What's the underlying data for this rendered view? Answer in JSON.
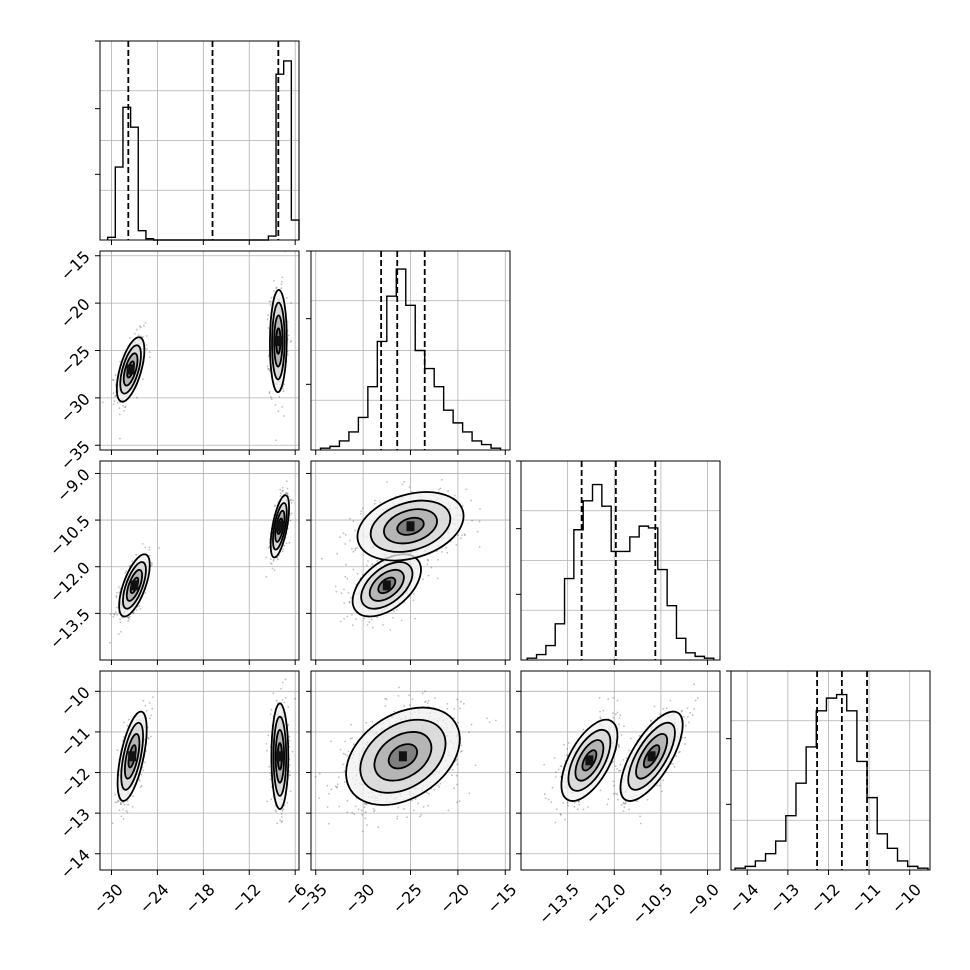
{
  "chart_data": {
    "type": "corner",
    "title": "",
    "colors": {
      "marks": "#000000",
      "grid": "#b0b0b0",
      "background": "#ffffff"
    },
    "grid": true,
    "legend": "none",
    "parameters": [
      {
        "index": 0,
        "range": [
          -31.5,
          -5.5
        ],
        "ticks": [
          -30,
          -24,
          -18,
          -12,
          -6
        ],
        "tick_labels": [
          "−30",
          "−24",
          "−18",
          "−12",
          "−6"
        ],
        "quantiles": [
          -27.8,
          -16.8,
          -8.2
        ]
      },
      {
        "index": 1,
        "range": [
          -35.5,
          -14.5
        ],
        "ticks": [
          -35,
          -30,
          -25,
          -20,
          -15
        ],
        "tick_labels": [
          "−35",
          "−30",
          "−25",
          "−20",
          "−15"
        ],
        "quantiles": [
          -28.1,
          -26.4,
          -23.5
        ]
      },
      {
        "index": 2,
        "range": [
          -15.0,
          -8.6
        ],
        "ticks": [
          -13.5,
          -12.0,
          -10.5,
          -9.0
        ],
        "tick_labels": [
          "−13.5",
          "−12.0",
          "−10.5",
          "−9.0"
        ],
        "quantiles": [
          -13.05,
          -11.95,
          -10.68
        ]
      },
      {
        "index": 3,
        "range": [
          -14.4,
          -9.5
        ],
        "ticks": [
          -14,
          -13,
          -12,
          -11,
          -10
        ],
        "tick_labels": [
          "−14",
          "−13",
          "−12",
          "−11",
          "−10"
        ],
        "quantiles": [
          -12.28,
          -11.67,
          -11.05
        ]
      }
    ],
    "histograms": [
      {
        "param": 0,
        "bin_edges": [
          -30.5,
          -29.5,
          -28.5,
          -27.5,
          -26.5,
          -25.5,
          -24.5,
          -23.5,
          -9.5,
          -8.5,
          -7.5,
          -6.5,
          -5.5
        ],
        "counts": [
          0.02,
          0.55,
          1.0,
          0.85,
          0.07,
          0.01,
          0,
          0,
          0.03,
          1.25,
          1.35,
          0.15
        ],
        "ylim": [
          0,
          1.5
        ]
      },
      {
        "param": 1,
        "bin_edges": [
          -34.5,
          -33.5,
          -32.5,
          -31.5,
          -30.5,
          -29.5,
          -28.5,
          -27.5,
          -26.5,
          -25.5,
          -24.5,
          -23.5,
          -22.5,
          -21.5,
          -20.5,
          -19.5,
          -18.5,
          -17.5,
          -16.5,
          -15.5
        ],
        "counts": [
          0.01,
          0.02,
          0.05,
          0.1,
          0.18,
          0.35,
          0.6,
          0.85,
          1.0,
          0.8,
          0.55,
          0.45,
          0.35,
          0.22,
          0.15,
          0.1,
          0.05,
          0.03,
          0.01
        ],
        "ylim": [
          0,
          1.1
        ]
      },
      {
        "param": 2,
        "bin_edges": [
          -14.8,
          -14.5,
          -14.2,
          -13.9,
          -13.6,
          -13.3,
          -13.0,
          -12.7,
          -12.4,
          -12.1,
          -11.8,
          -11.5,
          -11.2,
          -10.9,
          -10.6,
          -10.3,
          -10.0,
          -9.7,
          -9.4,
          -9.1,
          -8.8
        ],
        "counts": [
          0.01,
          0.03,
          0.08,
          0.2,
          0.45,
          0.72,
          0.88,
          0.97,
          0.85,
          0.6,
          0.6,
          0.68,
          0.74,
          0.73,
          0.5,
          0.3,
          0.12,
          0.04,
          0.02,
          0.01
        ],
        "ylim": [
          0,
          1.1
        ]
      },
      {
        "param": 3,
        "bin_edges": [
          -14.3,
          -14.05,
          -13.8,
          -13.55,
          -13.3,
          -13.05,
          -12.8,
          -12.55,
          -12.3,
          -12.05,
          -11.8,
          -11.55,
          -11.3,
          -11.05,
          -10.8,
          -10.55,
          -10.3,
          -10.05,
          -9.8,
          -9.55
        ],
        "counts": [
          0.01,
          0.02,
          0.05,
          0.09,
          0.16,
          0.3,
          0.48,
          0.68,
          0.88,
          0.95,
          0.97,
          0.88,
          0.6,
          0.4,
          0.2,
          0.12,
          0.05,
          0.02,
          0.01
        ],
        "ylim": [
          0,
          1.1
        ]
      }
    ],
    "pairs": [
      {
        "x": 0,
        "y": 1,
        "modes": [
          {
            "center": [
              -27.5,
              -27.0
            ],
            "sd": [
              0.9,
              1.7
            ],
            "rho": 0.6
          },
          {
            "center": [
              -8.2,
              -24.0
            ],
            "sd": [
              0.55,
              2.7
            ],
            "rho": 0.05
          }
        ]
      },
      {
        "x": 0,
        "y": 2,
        "modes": [
          {
            "center": [
              -27.0,
              -12.6
            ],
            "sd": [
              1.0,
              0.5
            ],
            "rho": 0.65
          },
          {
            "center": [
              -8.0,
              -10.7
            ],
            "sd": [
              0.6,
              0.5
            ],
            "rho": 0.6
          }
        ]
      },
      {
        "x": 0,
        "y": 3,
        "modes": [
          {
            "center": [
              -27.3,
              -11.6
            ],
            "sd": [
              0.95,
              0.55
            ],
            "rho": 0.6
          },
          {
            "center": [
              -8.0,
              -11.6
            ],
            "sd": [
              0.55,
              0.65
            ],
            "rho": 0.0
          }
        ]
      },
      {
        "x": 1,
        "y": 2,
        "modes": [
          {
            "center": [
              -27.5,
              -12.6
            ],
            "sd": [
              1.8,
              0.5
            ],
            "rho": 0.5
          },
          {
            "center": [
              -25.0,
              -10.7
            ],
            "sd": [
              2.8,
              0.55
            ],
            "rho": 0.3
          }
        ]
      },
      {
        "x": 1,
        "y": 3,
        "modes": [
          {
            "center": [
              -25.8,
              -11.6
            ],
            "sd": [
              3.0,
              0.6
            ],
            "rho": 0.35
          }
        ]
      },
      {
        "x": 2,
        "y": 3,
        "modes": [
          {
            "center": [
              -12.8,
              -11.7
            ],
            "sd": [
              0.45,
              0.5
            ],
            "rho": 0.6
          },
          {
            "center": [
              -10.8,
              -11.6
            ],
            "sd": [
              0.5,
              0.55
            ],
            "rho": 0.7
          }
        ]
      }
    ],
    "contour_levels_sigma": [
      0.5,
      1.0,
      1.5,
      2.0
    ]
  }
}
